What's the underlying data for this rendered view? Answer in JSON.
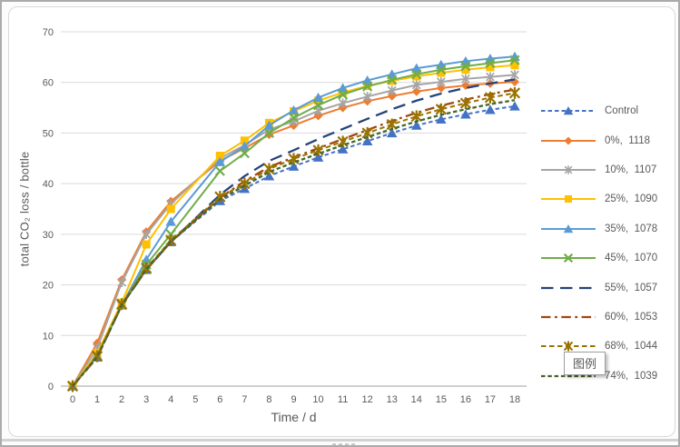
{
  "window": {
    "border_color": "#ABABAB",
    "background": "#FFFFFF"
  },
  "chart": {
    "grid_color": "#D9D9D9",
    "axis_color": "#C0C0C0",
    "text_color": "#595959"
  },
  "tooltip": {
    "label": "图例"
  },
  "chart_data": {
    "type": "line",
    "title": "",
    "xlabel": "Time / d",
    "ylabel": "total CO₂ loss / bottle",
    "xlim": [
      0,
      18
    ],
    "ylim": [
      0,
      70
    ],
    "grid": "horizontal",
    "legend_position": "right",
    "x_ticks": [
      0,
      1,
      2,
      3,
      4,
      5,
      6,
      7,
      8,
      9,
      10,
      11,
      12,
      13,
      14,
      15,
      16,
      17,
      18
    ],
    "y_ticks": [
      0,
      10,
      20,
      30,
      40,
      50,
      60,
      70
    ],
    "x": [
      0,
      1,
      2,
      3,
      4,
      6,
      7,
      8,
      9,
      10,
      11,
      12,
      13,
      14,
      15,
      16,
      17,
      18
    ],
    "series": [
      {
        "id": "control",
        "name": "Control",
        "legend_label": "Control",
        "color": "#4472C4",
        "line_style": "short-dash",
        "marker": "triangle",
        "values": [
          0,
          5.7,
          16,
          23,
          28.5,
          36.6,
          39,
          41.5,
          43.4,
          45.2,
          46.8,
          48.4,
          50,
          51.5,
          52.7,
          53.7,
          54.6,
          55.3
        ]
      },
      {
        "id": "pct0",
        "name": "0%, 1118",
        "legend_label": "0%,  1118",
        "color": "#ED7D31",
        "line_style": "solid",
        "marker": "diamond",
        "values": [
          0,
          8.5,
          21,
          30.5,
          36.5,
          44.5,
          47,
          49.7,
          51.5,
          53.4,
          55,
          56.3,
          57.3,
          58.2,
          58.9,
          59.4,
          59.8,
          60.1
        ]
      },
      {
        "id": "pct10",
        "name": "10%, 1107",
        "legend_label": "10%,  1107",
        "color": "#A5A5A5",
        "line_style": "solid",
        "marker": "asterisk",
        "values": [
          0,
          7.5,
          20.5,
          30,
          36,
          45,
          47.6,
          50.7,
          52.3,
          54.4,
          55.9,
          57.2,
          58.4,
          59.5,
          60.1,
          60.7,
          61.1,
          61.5
        ]
      },
      {
        "id": "pct25",
        "name": "25%, 1090",
        "legend_label": "25%,  1090",
        "color": "#FFC000",
        "line_style": "solid",
        "marker": "square",
        "values": [
          0,
          6.5,
          16.5,
          28,
          35,
          45.5,
          48.5,
          52,
          54.3,
          56.4,
          58,
          59.3,
          60.3,
          61.2,
          61.9,
          62.5,
          63,
          63.4
        ]
      },
      {
        "id": "pct35",
        "name": "35%, 1078",
        "legend_label": "35%,  1078",
        "color": "#5B9BD5",
        "line_style": "solid",
        "marker": "triangle",
        "values": [
          0,
          6,
          16,
          25,
          32.5,
          44.3,
          47.4,
          51.5,
          54.5,
          57,
          58.9,
          60.4,
          61.6,
          62.8,
          63.5,
          64.2,
          64.7,
          65.1
        ]
      },
      {
        "id": "pct45",
        "name": "45%, 1070",
        "legend_label": "45%,  1070",
        "color": "#70AD47",
        "line_style": "solid",
        "marker": "x",
        "values": [
          0,
          6,
          16,
          24,
          30,
          42.5,
          46,
          50,
          53,
          55.5,
          57.6,
          59.2,
          60.5,
          61.6,
          62.5,
          63.2,
          63.8,
          64.4
        ]
      },
      {
        "id": "pct55",
        "name": "55%, 1057",
        "legend_label": "55%,  1057",
        "color": "#264478",
        "line_style": "long-dash",
        "marker": "none",
        "values": [
          0,
          5.7,
          16,
          23,
          28.5,
          37.8,
          41.5,
          44.5,
          46.6,
          48.8,
          50.8,
          52.8,
          54.7,
          56.4,
          57.8,
          58.9,
          59.8,
          60.6
        ]
      },
      {
        "id": "pct60",
        "name": "60%, 1053",
        "legend_label": "60%,  1053",
        "color": "#9E480E",
        "line_style": "dash-dot",
        "marker": "none",
        "values": [
          0,
          5.7,
          16,
          23,
          28.5,
          37.2,
          40.5,
          43.3,
          45.2,
          47,
          48.8,
          50.6,
          52.4,
          54,
          55.4,
          56.6,
          57.7,
          58.6
        ]
      },
      {
        "id": "pct68",
        "name": "68%, 1044",
        "legend_label": "68%,  1044",
        "color": "#997300",
        "line_style": "med-dash",
        "marker": "asterisk",
        "values": [
          0,
          5.9,
          16.2,
          23.3,
          28.8,
          37.4,
          40,
          42.9,
          44.9,
          46.6,
          48.3,
          50,
          51.7,
          53.3,
          54.7,
          55.9,
          57,
          57.9
        ]
      },
      {
        "id": "pct74",
        "name": "74%, 1039",
        "legend_label": "74%,  1039",
        "color": "#43682B",
        "line_style": "sm-dash",
        "marker": "none",
        "values": [
          0,
          5.8,
          16,
          23.1,
          28.6,
          36.9,
          39.6,
          42.3,
          44.2,
          45.9,
          47.6,
          49.2,
          50.8,
          52.3,
          53.6,
          54.7,
          55.7,
          56.5
        ]
      }
    ]
  }
}
